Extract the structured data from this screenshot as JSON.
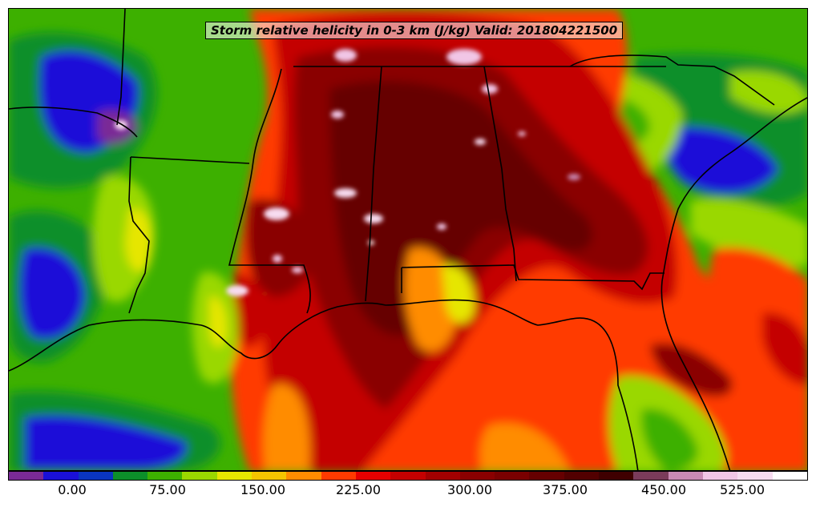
{
  "map": {
    "title": "Storm relative helicity in 0-3 km (J/kg) Valid: 201804221500"
  },
  "colorbar": {
    "colors": [
      "#7a2a96",
      "#1a10d8",
      "#0a35c0",
      "#0c8f2a",
      "#3db000",
      "#9ad800",
      "#e6e600",
      "#f5c400",
      "#ff8c00",
      "#ff3a00",
      "#e60000",
      "#c40000",
      "#a30000",
      "#8a0000",
      "#7a0000",
      "#660000",
      "#520000",
      "#3f0000",
      "#7a3b5a",
      "#c98ab4",
      "#f1c6e6",
      "#f7dcf0",
      "#ffffff"
    ],
    "tick_labels": [
      "0.00",
      "75.00",
      "150.00",
      "225.00",
      "300.00",
      "375.00",
      "450.00",
      "525.00"
    ]
  }
}
